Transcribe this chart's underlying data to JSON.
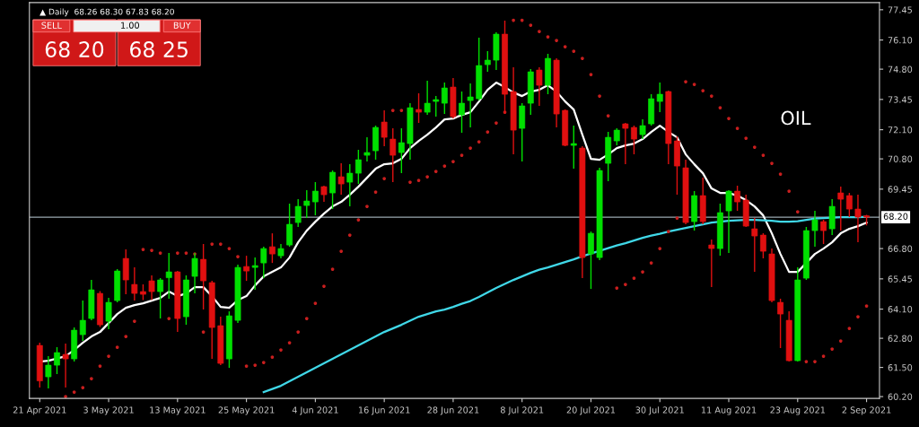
{
  "chart_data": {
    "type": "candlestick",
    "title": "▲ Daily  68.26 68.30 67.83 68.20",
    "categories": [
      "21 Apr 2021",
      null,
      null,
      null,
      null,
      null,
      null,
      null,
      "3 May 2021",
      null,
      null,
      null,
      null,
      null,
      null,
      null,
      "13 May 2021",
      null,
      null,
      null,
      null,
      null,
      null,
      null,
      "25 May 2021",
      null,
      null,
      null,
      null,
      null,
      null,
      null,
      "4 Jun 2021",
      null,
      null,
      null,
      null,
      null,
      null,
      null,
      "16 Jun 2021",
      null,
      null,
      null,
      null,
      null,
      null,
      null,
      "28 Jun 2021",
      null,
      null,
      null,
      null,
      null,
      null,
      null,
      "8 Jul 2021",
      null,
      null,
      null,
      null,
      null,
      null,
      null,
      "20 Jul 2021",
      null,
      null,
      null,
      null,
      null,
      null,
      null,
      "30 Jul 2021",
      null,
      null,
      null,
      null,
      null,
      null,
      null,
      "11 Aug 2021",
      null,
      null,
      null,
      null,
      null,
      null,
      null,
      "23 Aug 2021",
      null,
      null,
      null,
      null,
      null,
      null,
      null,
      "2 Sep 2021"
    ],
    "ohlc": [
      [
        62.48,
        62.6,
        60.6,
        60.9
      ],
      [
        61.08,
        62.0,
        60.56,
        61.6
      ],
      [
        61.6,
        62.4,
        61.2,
        62.16
      ],
      [
        62.08,
        62.56,
        60.6,
        61.88
      ],
      [
        61.88,
        63.28,
        61.76,
        63.16
      ],
      [
        62.96,
        64.48,
        62.68,
        63.6
      ],
      [
        63.68,
        65.4,
        63.6,
        64.96
      ],
      [
        64.8,
        64.9,
        63.3,
        63.4
      ],
      [
        63.56,
        64.6,
        63.2,
        64.4
      ],
      [
        64.48,
        65.88,
        64.4,
        65.8
      ],
      [
        66.36,
        66.76,
        64.76,
        65.4
      ],
      [
        65.2,
        65.96,
        64.48,
        64.8
      ],
      [
        64.88,
        65.2,
        64.5,
        64.76
      ],
      [
        65.36,
        65.6,
        64.5,
        64.88
      ],
      [
        64.88,
        65.48,
        63.68,
        65.4
      ],
      [
        65.5,
        66.6,
        64.56,
        65.76
      ],
      [
        65.76,
        65.8,
        63.08,
        63.68
      ],
      [
        63.76,
        65.6,
        63.4,
        65.4
      ],
      [
        65.56,
        66.6,
        64.8,
        66.36
      ],
      [
        66.32,
        67.0,
        64.08,
        65.36
      ],
      [
        65.28,
        65.36,
        61.88,
        63.28
      ],
      [
        63.36,
        63.76,
        61.6,
        61.68
      ],
      [
        61.88,
        64.0,
        61.48,
        63.8
      ],
      [
        63.6,
        66.08,
        63.48,
        65.96
      ],
      [
        66.0,
        66.48,
        65.36,
        65.8
      ],
      [
        65.96,
        66.4,
        64.96,
        66.04
      ],
      [
        66.16,
        66.88,
        65.48,
        66.8
      ],
      [
        66.88,
        67.48,
        66.16,
        66.56
      ],
      [
        66.48,
        67.0,
        66.36,
        66.8
      ],
      [
        66.96,
        68.8,
        66.88,
        67.88
      ],
      [
        67.96,
        69.0,
        67.76,
        68.68
      ],
      [
        68.72,
        69.4,
        68.16,
        68.92
      ],
      [
        68.88,
        69.76,
        68.28,
        69.36
      ],
      [
        69.56,
        69.6,
        68.88,
        69.2
      ],
      [
        69.28,
        70.28,
        68.56,
        70.2
      ],
      [
        70.0,
        70.6,
        69.2,
        69.68
      ],
      [
        69.76,
        70.56,
        68.68,
        70.16
      ],
      [
        70.16,
        71.2,
        69.68,
        70.76
      ],
      [
        70.96,
        71.76,
        70.68,
        71.08
      ],
      [
        71.16,
        72.28,
        70.76,
        72.2
      ],
      [
        72.44,
        72.96,
        71.36,
        71.76
      ],
      [
        71.68,
        72.16,
        69.76,
        70.96
      ],
      [
        71.08,
        72.16,
        70.16,
        71.52
      ],
      [
        71.48,
        73.28,
        70.76,
        73.08
      ],
      [
        73.0,
        73.72,
        72.4,
        72.88
      ],
      [
        72.88,
        74.28,
        72.76,
        73.28
      ],
      [
        73.36,
        73.6,
        72.68,
        73.44
      ],
      [
        73.28,
        74.2,
        72.8,
        73.96
      ],
      [
        74.0,
        74.4,
        72.6,
        72.68
      ],
      [
        72.76,
        73.8,
        71.96,
        73.28
      ],
      [
        73.4,
        74.16,
        72.2,
        73.56
      ],
      [
        73.48,
        76.2,
        73.4,
        74.96
      ],
      [
        75.0,
        75.6,
        74.68,
        75.2
      ],
      [
        75.2,
        76.44,
        74.76,
        76.36
      ],
      [
        76.36,
        76.96,
        72.8,
        73.68
      ],
      [
        73.8,
        74.88,
        71.0,
        72.08
      ],
      [
        72.16,
        73.28,
        70.68,
        73.16
      ],
      [
        73.28,
        74.8,
        72.76,
        74.68
      ],
      [
        74.76,
        74.88,
        73.16,
        74.08
      ],
      [
        74.08,
        75.48,
        73.68,
        75.28
      ],
      [
        75.2,
        75.28,
        72.2,
        72.8
      ],
      [
        72.96,
        73.0,
        71.36,
        71.4
      ],
      [
        71.4,
        72.28,
        70.36,
        71.48
      ],
      [
        71.28,
        71.36,
        65.48,
        66.4
      ],
      [
        66.56,
        67.56,
        65.0,
        67.48
      ],
      [
        66.4,
        70.4,
        66.28,
        70.28
      ],
      [
        70.6,
        72.0,
        69.8,
        71.76
      ],
      [
        71.6,
        72.16,
        71.4,
        72.08
      ],
      [
        72.36,
        72.4,
        70.56,
        72.16
      ],
      [
        72.2,
        72.28,
        71.0,
        71.68
      ],
      [
        71.88,
        72.56,
        71.68,
        72.28
      ],
      [
        72.36,
        73.68,
        72.28,
        73.48
      ],
      [
        73.36,
        74.2,
        72.88,
        73.68
      ],
      [
        73.8,
        73.84,
        70.56,
        71.48
      ],
      [
        71.6,
        71.8,
        69.2,
        70.48
      ],
      [
        70.4,
        70.76,
        67.88,
        67.96
      ],
      [
        68.0,
        69.36,
        67.6,
        69.16
      ],
      [
        69.16,
        69.96,
        67.88,
        68.0
      ],
      [
        66.96,
        67.2,
        65.08,
        66.8
      ],
      [
        66.8,
        68.8,
        66.48,
        68.4
      ],
      [
        68.48,
        69.4,
        66.6,
        69.36
      ],
      [
        69.36,
        69.6,
        68.48,
        68.88
      ],
      [
        68.96,
        69.2,
        67.76,
        67.8
      ],
      [
        67.68,
        68.16,
        65.76,
        67.36
      ],
      [
        67.4,
        67.48,
        66.36,
        66.68
      ],
      [
        66.56,
        66.8,
        64.4,
        64.48
      ],
      [
        64.4,
        64.56,
        62.36,
        63.88
      ],
      [
        63.6,
        64.0,
        61.76,
        61.8
      ],
      [
        61.8,
        65.96,
        61.76,
        65.4
      ],
      [
        65.48,
        67.76,
        65.4,
        67.6
      ],
      [
        67.6,
        68.48,
        66.88,
        68.08
      ],
      [
        68.0,
        68.08,
        67.0,
        67.6
      ],
      [
        67.68,
        69.0,
        67.4,
        68.68
      ],
      [
        69.28,
        69.56,
        67.6,
        69.0
      ],
      [
        69.16,
        69.28,
        68.2,
        68.56
      ],
      [
        68.56,
        69.2,
        67.08,
        68.2
      ],
      [
        68.26,
        68.3,
        67.83,
        68.2
      ]
    ],
    "colors": [
      "#e01010",
      "#00e000",
      "#00e000",
      "#e01010",
      "#00e000",
      "#00e000",
      "#00e000",
      "#e01010",
      "#00e000",
      "#00e000",
      "#e01010",
      "#e01010",
      "#e01010",
      "#e01010",
      "#00e000",
      "#00e000",
      "#e01010",
      "#00e000",
      "#00e000",
      "#e01010",
      "#e01010",
      "#e01010",
      "#00e000",
      "#00e000",
      "#e01010",
      "#00e000",
      "#00e000",
      "#e01010",
      "#00e000",
      "#00e000",
      "#00e000",
      "#00e000",
      "#00e000",
      "#e01010",
      "#00e000",
      "#e01010",
      "#00e000",
      "#00e000",
      "#00e000",
      "#00e000",
      "#e01010",
      "#e01010",
      "#00e000",
      "#00e000",
      "#e01010",
      "#00e000",
      "#00e000",
      "#00e000",
      "#e01010",
      "#00e000",
      "#00e000",
      "#00e000",
      "#00e000",
      "#00e000",
      "#e01010",
      "#e01010",
      "#00e000",
      "#00e000",
      "#e01010",
      "#00e000",
      "#e01010",
      "#e01010",
      "#00e000",
      "#e01010",
      "#00e000",
      "#00e000",
      "#00e000",
      "#00e000",
      "#e01010",
      "#e01010",
      "#00e000",
      "#00e000",
      "#00e000",
      "#e01010",
      "#e01010",
      "#e01010",
      "#00e000",
      "#e01010",
      "#e01010",
      "#00e000",
      "#00e000",
      "#e01010",
      "#e01010",
      "#e01010",
      "#e01010",
      "#e01010",
      "#e01010",
      "#e01010",
      "#00e000",
      "#00e000",
      "#00e000",
      "#e01010",
      "#00e000",
      "#e01010",
      "#e01010",
      "#e01010",
      "#e01010"
    ],
    "series": [
      {
        "type": "line",
        "color": "#ffffff",
        "values": [
          61.76,
          61.8,
          61.9,
          62.0,
          62.28,
          62.6,
          62.88,
          63.08,
          63.48,
          63.88,
          64.16,
          64.28,
          64.36,
          64.48,
          64.6,
          64.88,
          64.68,
          64.8,
          65.08,
          65.08,
          64.68,
          64.2,
          64.16,
          64.5,
          64.68,
          65.16,
          65.56,
          65.76,
          65.96,
          66.4,
          67.08,
          67.6,
          68.0,
          68.36,
          68.68,
          68.88,
          69.2,
          69.56,
          69.96,
          70.36,
          70.56,
          70.6,
          70.8,
          71.28,
          71.6,
          71.88,
          72.2,
          72.56,
          72.6,
          72.76,
          72.88,
          73.36,
          73.88,
          74.2,
          74.0,
          73.76,
          73.6,
          73.8,
          73.88,
          74.08,
          73.8,
          73.36,
          73.0,
          71.88,
          70.8,
          70.76,
          71.0,
          71.28,
          71.4,
          71.48,
          71.68,
          72.0,
          72.28,
          72.0,
          71.76,
          71.0,
          70.56,
          70.16,
          69.48,
          69.28,
          69.28,
          69.16,
          68.96,
          68.68,
          68.28,
          67.48,
          66.56,
          65.76,
          65.76,
          66.16,
          66.56,
          66.8,
          67.08,
          67.48,
          67.68,
          67.8,
          67.96
        ]
      },
      {
        "type": "line",
        "color": "#40d8e8",
        "values": [
          null,
          null,
          null,
          null,
          null,
          null,
          null,
          null,
          null,
          null,
          null,
          null,
          null,
          null,
          null,
          null,
          null,
          null,
          null,
          null,
          null,
          null,
          null,
          null,
          null,
          null,
          60.4,
          60.54,
          60.68,
          60.88,
          61.08,
          61.28,
          61.48,
          61.68,
          61.88,
          62.08,
          62.28,
          62.48,
          62.68,
          62.88,
          63.08,
          63.24,
          63.4,
          63.58,
          63.76,
          63.88,
          64.0,
          64.08,
          64.2,
          64.34,
          64.46,
          64.64,
          64.84,
          65.04,
          65.22,
          65.4,
          65.56,
          65.72,
          65.86,
          65.96,
          66.08,
          66.2,
          66.32,
          66.46,
          66.58,
          66.7,
          66.82,
          66.94,
          67.04,
          67.16,
          67.28,
          67.38,
          67.46,
          67.56,
          67.64,
          67.72,
          67.8,
          67.88,
          67.96,
          68.0,
          68.04,
          68.06,
          68.08,
          68.08,
          68.06,
          68.04,
          68.0,
          68.0,
          68.02,
          68.08,
          68.14,
          68.16,
          68.18,
          68.2,
          68.2,
          68.2,
          68.22
        ]
      },
      {
        "type": "scatter",
        "color": "#c81e1e",
        "marker": "circle",
        "values": [
          null,
          null,
          null,
          60.2,
          60.4,
          60.6,
          61.0,
          61.56,
          62.0,
          62.4,
          62.88,
          63.56,
          66.76,
          66.72,
          66.6,
          63.68,
          66.6,
          66.6,
          66.56,
          63.08,
          67.0,
          67.0,
          66.8,
          66.44,
          61.56,
          61.6,
          61.72,
          61.96,
          62.28,
          62.6,
          63.08,
          63.68,
          64.36,
          65.12,
          65.88,
          66.68,
          67.4,
          68.08,
          68.68,
          69.32,
          69.92,
          72.96,
          72.96,
          69.76,
          69.84,
          70.0,
          70.24,
          70.48,
          70.68,
          70.96,
          71.28,
          71.56,
          72.0,
          72.4,
          72.88,
          76.98,
          76.98,
          76.76,
          76.48,
          76.24,
          76.08,
          75.8,
          75.6,
          75.28,
          74.56,
          73.6,
          72.72,
          65.04,
          65.2,
          65.48,
          65.76,
          66.16,
          66.8,
          67.56,
          68.16,
          74.24,
          74.12,
          73.84,
          73.6,
          73.08,
          72.6,
          72.16,
          71.72,
          71.32,
          70.96,
          70.6,
          70.12,
          69.36,
          68.44,
          61.76,
          61.76,
          62.0,
          62.32,
          62.68,
          63.24,
          63.76,
          64.24
        ]
      }
    ],
    "ylim": [
      60.12,
      77.77
    ],
    "yticks": [
      {
        "value": 60.2,
        "label": "60.20"
      },
      {
        "value": 61.5,
        "label": "61.50"
      },
      {
        "value": 62.8,
        "label": "62.80"
      },
      {
        "value": 64.1,
        "label": "64.10"
      },
      {
        "value": 65.45,
        "label": "65.45"
      },
      {
        "value": 66.8,
        "label": "66.80"
      },
      {
        "value": 69.45,
        "label": "69.45"
      },
      {
        "value": 70.8,
        "label": "70.80"
      },
      {
        "value": 72.1,
        "label": "72.10"
      },
      {
        "value": 73.45,
        "label": "73.45"
      },
      {
        "value": 74.8,
        "label": "74.80"
      },
      {
        "value": 76.1,
        "label": "76.10"
      },
      {
        "value": 77.45,
        "label": "77.45"
      }
    ],
    "ref_lines": [
      {
        "axis": "y",
        "value": 68.2,
        "label": "68.20",
        "color": "#9aa8b0"
      }
    ],
    "annotations": [
      "OIL",
      "SELL",
      "1.00",
      "BUY",
      "68 20",
      "68 25"
    ]
  }
}
